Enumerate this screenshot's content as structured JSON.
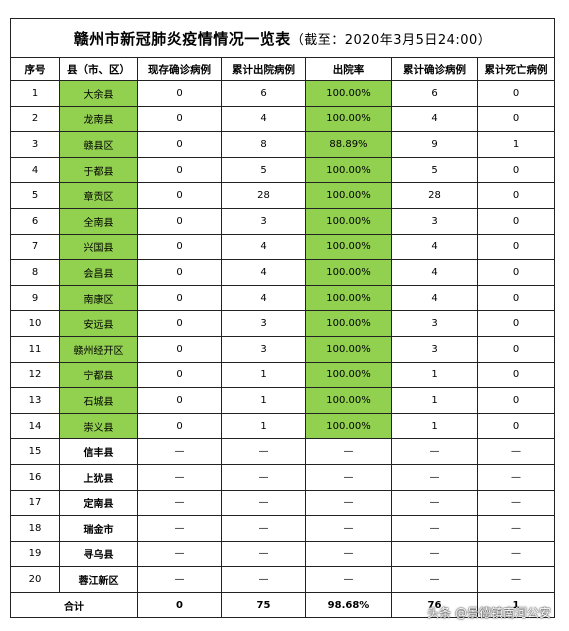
{
  "title": "赣州市新冠肺炎疫情情况一览表",
  "subtitle": "（截至：2020年3月5日24:00）",
  "headers": [
    "序号",
    "县（市、区）",
    "现存确诊病例",
    "累计出院病例",
    "出院率",
    "累计确诊病例",
    "累计死亡病例"
  ],
  "rows": [
    {
      "no": "1",
      "county": "大余县",
      "current": "0",
      "discharged": "6",
      "rate": "100.00%",
      "confirmed": "6",
      "deaths": "0",
      "highlight": true
    },
    {
      "no": "2",
      "county": "龙南县",
      "current": "0",
      "discharged": "4",
      "rate": "100.00%",
      "confirmed": "4",
      "deaths": "0",
      "highlight": true
    },
    {
      "no": "3",
      "county": "赣县区",
      "current": "0",
      "discharged": "8",
      "rate": "88.89%",
      "confirmed": "9",
      "deaths": "1",
      "highlight": true
    },
    {
      "no": "4",
      "county": "于都县",
      "current": "0",
      "discharged": "5",
      "rate": "100.00%",
      "confirmed": "5",
      "deaths": "0",
      "highlight": true
    },
    {
      "no": "5",
      "county": "章贡区",
      "current": "0",
      "discharged": "28",
      "rate": "100.00%",
      "confirmed": "28",
      "deaths": "0",
      "highlight": true
    },
    {
      "no": "6",
      "county": "全南县",
      "current": "0",
      "discharged": "3",
      "rate": "100.00%",
      "confirmed": "3",
      "deaths": "0",
      "highlight": true
    },
    {
      "no": "7",
      "county": "兴国县",
      "current": "0",
      "discharged": "4",
      "rate": "100.00%",
      "confirmed": "4",
      "deaths": "0",
      "highlight": true
    },
    {
      "no": "8",
      "county": "会昌县",
      "current": "0",
      "discharged": "4",
      "rate": "100.00%",
      "confirmed": "4",
      "deaths": "0",
      "highlight": true
    },
    {
      "no": "9",
      "county": "南康区",
      "current": "0",
      "discharged": "4",
      "rate": "100.00%",
      "confirmed": "4",
      "deaths": "0",
      "highlight": true
    },
    {
      "no": "10",
      "county": "安远县",
      "current": "0",
      "discharged": "3",
      "rate": "100.00%",
      "confirmed": "3",
      "deaths": "0",
      "highlight": true
    },
    {
      "no": "11",
      "county": "赣州经开区",
      "current": "0",
      "discharged": "3",
      "rate": "100.00%",
      "confirmed": "3",
      "deaths": "0",
      "highlight": true
    },
    {
      "no": "12",
      "county": "宁都县",
      "current": "0",
      "discharged": "1",
      "rate": "100.00%",
      "confirmed": "1",
      "deaths": "0",
      "highlight": true
    },
    {
      "no": "13",
      "county": "石城县",
      "current": "0",
      "discharged": "1",
      "rate": "100.00%",
      "confirmed": "1",
      "deaths": "0",
      "highlight": true
    },
    {
      "no": "14",
      "county": "崇义县",
      "current": "0",
      "discharged": "1",
      "rate": "100.00%",
      "confirmed": "1",
      "deaths": "0",
      "highlight": true
    },
    {
      "no": "15",
      "county": "信丰县",
      "current": "—",
      "discharged": "—",
      "rate": "—",
      "confirmed": "—",
      "deaths": "—",
      "highlight": false
    },
    {
      "no": "16",
      "county": "上犹县",
      "current": "—",
      "discharged": "—",
      "rate": "—",
      "confirmed": "—",
      "deaths": "—",
      "highlight": false
    },
    {
      "no": "17",
      "county": "定南县",
      "current": "—",
      "discharged": "—",
      "rate": "—",
      "confirmed": "—",
      "deaths": "—",
      "highlight": false
    },
    {
      "no": "18",
      "county": "瑞金市",
      "current": "—",
      "discharged": "—",
      "rate": "—",
      "confirmed": "—",
      "deaths": "—",
      "highlight": false
    },
    {
      "no": "19",
      "county": "寻乌县",
      "current": "—",
      "discharged": "—",
      "rate": "—",
      "confirmed": "—",
      "deaths": "—",
      "highlight": false
    },
    {
      "no": "20",
      "county": "蓉江新区",
      "current": "—",
      "discharged": "—",
      "rate": "—",
      "confirmed": "—",
      "deaths": "—",
      "highlight": false
    }
  ],
  "total": {
    "label": "合计",
    "current": "0",
    "discharged": "75",
    "rate": "98.68%",
    "confirmed": "76",
    "deaths": "1"
  },
  "watermark": "头条 @景德镇南河公安",
  "colors": {
    "highlight": "#92d050",
    "border": "#222222"
  }
}
